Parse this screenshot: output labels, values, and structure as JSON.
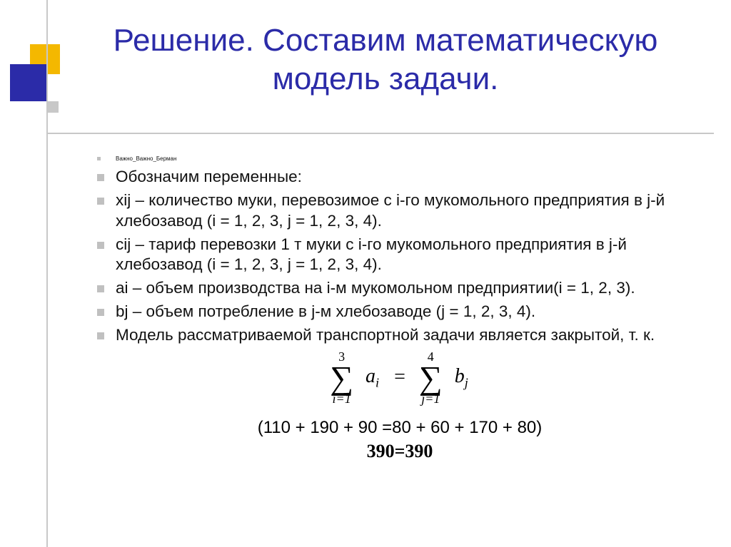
{
  "colors": {
    "title": "#2b2ba8",
    "square_yellow": "#f4b800",
    "square_blue": "#2b2ba8",
    "square_gray": "#c8c8c8",
    "line_gray": "#c8c8c8",
    "bullet": "#c0c0c0",
    "text": "#111111",
    "background": "#ffffff"
  },
  "typography": {
    "title_fontsize": 44,
    "body_fontsize": 22.5,
    "tiny_fontsize": 8,
    "formula_fontsize": 28,
    "calc_fontsize": 24,
    "result_fontsize": 26,
    "title_font": "Arial",
    "formula_font": "Cambria Math"
  },
  "title": "Решение. Составим математическую модель задачи.",
  "bullets": [
    {
      "text": "Важно_Важно_Берман",
      "tiny": true
    },
    {
      "text": "Обозначим переменные:"
    },
    {
      "text": "xij – количество муки, перевозимое с i-го мукомольного предприятия в j-й хлебозавод (i = 1, 2, 3, j = 1, 2, 3, 4)."
    },
    {
      "text": "cij – тариф перевозки 1 т муки с i-го мукомольного предприятия в j-й хлебозавод (i = 1, 2, 3, j = 1, 2, 3, 4)."
    },
    {
      "text": "ai – объем производства на i-м мукомольном предприятии(i = 1, 2, 3)."
    },
    {
      "text": "bj – объем потребление в j-м хлебозаводе (j = 1, 2, 3, 4)."
    },
    {
      "text": "Модель рассматриваемой транспортной задачи является закрытой, т. к."
    }
  ],
  "formula": {
    "left_sum": {
      "upper": "3",
      "lower": "i=1",
      "term": "a",
      "sub": "i"
    },
    "right_sum": {
      "upper": "4",
      "lower": "j=1",
      "term": "b",
      "sub": "j"
    },
    "operator": "="
  },
  "calc_line": "(110 + 190 + 90 =80 + 60 + 170 + 80)",
  "result": "390=390"
}
